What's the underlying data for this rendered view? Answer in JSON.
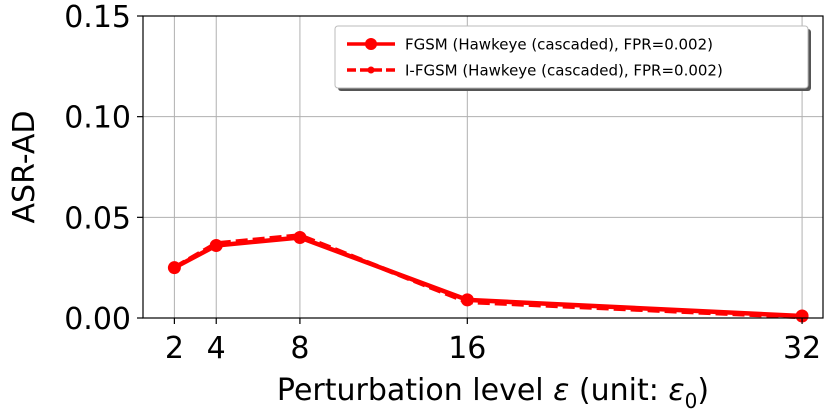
{
  "chart_data": {
    "type": "line",
    "title": "",
    "xlabel_main": "Perturbation level ",
    "xlabel_var": "ε",
    "xlabel_paren": " (unit: ",
    "xlabel_unit_var": "ε",
    "xlabel_unit_sub": "0",
    "xlabel_close": ")",
    "ylabel": "ASR-AD",
    "x": [
      2,
      4,
      8,
      16,
      32
    ],
    "xticks": [
      "2",
      "4",
      "8",
      "16",
      "32"
    ],
    "xlim": [
      0.5,
      33
    ],
    "ylim": [
      0,
      0.15
    ],
    "yticks": [
      "0.00",
      "0.05",
      "0.10",
      "0.15"
    ],
    "grid": true,
    "legend_position": "top-right",
    "series": [
      {
        "name": "FGSM (Hawkeye (cascaded), FPR=0.002)",
        "values": [
          0.025,
          0.036,
          0.04,
          0.009,
          0.001
        ],
        "color": "#ff0000",
        "style": "solid"
      },
      {
        "name": "I-FGSM (Hawkeye (cascaded), FPR=0.002)",
        "values": [
          0.025,
          0.037,
          0.041,
          0.008,
          0.0005
        ],
        "color": "#ff0000",
        "style": "dashed"
      }
    ]
  }
}
